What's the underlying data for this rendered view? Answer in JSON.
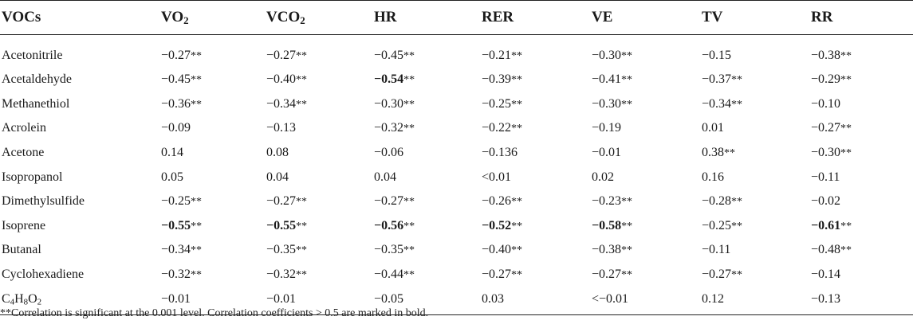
{
  "table": {
    "headers": [
      {
        "base": "VOCs",
        "sub": "",
        "rest": ""
      },
      {
        "base": "VO",
        "sub": "2",
        "rest": ""
      },
      {
        "base": "VCO",
        "sub": "2",
        "rest": ""
      },
      {
        "base": "HR",
        "sub": "",
        "rest": ""
      },
      {
        "base": "RER",
        "sub": "",
        "rest": ""
      },
      {
        "base": "VE",
        "sub": "",
        "rest": ""
      },
      {
        "base": "TV",
        "sub": "",
        "rest": ""
      },
      {
        "base": "RR",
        "sub": "",
        "rest": ""
      }
    ],
    "rows": [
      {
        "voc": {
          "base": "Acetonitrile",
          "parts": []
        },
        "cells": [
          {
            "v": "−0.27",
            "s": "**",
            "b": false
          },
          {
            "v": "−0.27",
            "s": "**",
            "b": false
          },
          {
            "v": "−0.45",
            "s": "**",
            "b": false
          },
          {
            "v": "−0.21",
            "s": "**",
            "b": false
          },
          {
            "v": "−0.30",
            "s": "**",
            "b": false
          },
          {
            "v": "−0.15",
            "s": "",
            "b": false
          },
          {
            "v": "−0.38",
            "s": "**",
            "b": false
          }
        ]
      },
      {
        "voc": {
          "base": "Acetaldehyde",
          "parts": []
        },
        "cells": [
          {
            "v": "−0.45",
            "s": "**",
            "b": false
          },
          {
            "v": "−0.40",
            "s": "**",
            "b": false
          },
          {
            "v": "−0.54",
            "s": "**",
            "b": true
          },
          {
            "v": "−0.39",
            "s": "**",
            "b": false
          },
          {
            "v": "−0.41",
            "s": "**",
            "b": false
          },
          {
            "v": "−0.37",
            "s": "**",
            "b": false
          },
          {
            "v": "−0.29",
            "s": "**",
            "b": false
          }
        ]
      },
      {
        "voc": {
          "base": "Methanethiol",
          "parts": []
        },
        "cells": [
          {
            "v": "−0.36",
            "s": "**",
            "b": false
          },
          {
            "v": "−0.34",
            "s": "**",
            "b": false
          },
          {
            "v": "−0.30",
            "s": "**",
            "b": false
          },
          {
            "v": "−0.25",
            "s": "**",
            "b": false
          },
          {
            "v": "−0.30",
            "s": "**",
            "b": false
          },
          {
            "v": "−0.34",
            "s": "**",
            "b": false
          },
          {
            "v": "−0.10",
            "s": "",
            "b": false
          }
        ]
      },
      {
        "voc": {
          "base": "Acrolein",
          "parts": []
        },
        "cells": [
          {
            "v": "−0.09",
            "s": "",
            "b": false
          },
          {
            "v": "−0.13",
            "s": "",
            "b": false
          },
          {
            "v": "−0.32",
            "s": "**",
            "b": false
          },
          {
            "v": "−0.22",
            "s": "**",
            "b": false
          },
          {
            "v": "−0.19",
            "s": "",
            "b": false
          },
          {
            "v": "0.01",
            "s": "",
            "b": false
          },
          {
            "v": "−0.27",
            "s": "**",
            "b": false
          }
        ]
      },
      {
        "voc": {
          "base": "Acetone",
          "parts": []
        },
        "cells": [
          {
            "v": "0.14",
            "s": "",
            "b": false
          },
          {
            "v": "0.08",
            "s": "",
            "b": false
          },
          {
            "v": "−0.06",
            "s": "",
            "b": false
          },
          {
            "v": "−0.136",
            "s": "",
            "b": false
          },
          {
            "v": "−0.01",
            "s": "",
            "b": false
          },
          {
            "v": "0.38",
            "s": "**",
            "b": false
          },
          {
            "v": "−0.30",
            "s": "**",
            "b": false
          }
        ]
      },
      {
        "voc": {
          "base": "Isopropanol",
          "parts": []
        },
        "cells": [
          {
            "v": "0.05",
            "s": "",
            "b": false
          },
          {
            "v": "0.04",
            "s": "",
            "b": false
          },
          {
            "v": "0.04",
            "s": "",
            "b": false
          },
          {
            "v": "<0.01",
            "s": "",
            "b": false
          },
          {
            "v": "0.02",
            "s": "",
            "b": false
          },
          {
            "v": "0.16",
            "s": "",
            "b": false
          },
          {
            "v": "−0.11",
            "s": "",
            "b": false
          }
        ]
      },
      {
        "voc": {
          "base": "Dimethylsulfide",
          "parts": []
        },
        "cells": [
          {
            "v": "−0.25",
            "s": "**",
            "b": false
          },
          {
            "v": "−0.27",
            "s": "**",
            "b": false
          },
          {
            "v": "−0.27",
            "s": "**",
            "b": false
          },
          {
            "v": "−0.26",
            "s": "**",
            "b": false
          },
          {
            "v": "−0.23",
            "s": "**",
            "b": false
          },
          {
            "v": "−0.28",
            "s": "**",
            "b": false
          },
          {
            "v": "−0.02",
            "s": "",
            "b": false
          }
        ]
      },
      {
        "voc": {
          "base": "Isoprene",
          "parts": []
        },
        "cells": [
          {
            "v": "−0.55",
            "s": "**",
            "b": true
          },
          {
            "v": "−0.55",
            "s": "**",
            "b": true
          },
          {
            "v": "−0.56",
            "s": "**",
            "b": true
          },
          {
            "v": "−0.52",
            "s": "**",
            "b": true
          },
          {
            "v": "−0.58",
            "s": "**",
            "b": true
          },
          {
            "v": "−0.25",
            "s": "**",
            "b": false
          },
          {
            "v": "−0.61",
            "s": "**",
            "b": true
          }
        ]
      },
      {
        "voc": {
          "base": "Butanal",
          "parts": []
        },
        "cells": [
          {
            "v": "−0.34",
            "s": "**",
            "b": false
          },
          {
            "v": "−0.35",
            "s": "**",
            "b": false
          },
          {
            "v": "−0.35",
            "s": "**",
            "b": false
          },
          {
            "v": "−0.40",
            "s": "**",
            "b": false
          },
          {
            "v": "−0.38",
            "s": "**",
            "b": false
          },
          {
            "v": "−0.11",
            "s": "",
            "b": false
          },
          {
            "v": "−0.48",
            "s": "**",
            "b": false
          }
        ]
      },
      {
        "voc": {
          "base": "Cyclohexadiene",
          "parts": []
        },
        "cells": [
          {
            "v": "−0.32",
            "s": "**",
            "b": false
          },
          {
            "v": "−0.32",
            "s": "**",
            "b": false
          },
          {
            "v": "−0.44",
            "s": "**",
            "b": false
          },
          {
            "v": "−0.27",
            "s": "**",
            "b": false
          },
          {
            "v": "−0.27",
            "s": "**",
            "b": false
          },
          {
            "v": "−0.27",
            "s": "**",
            "b": false
          },
          {
            "v": "−0.14",
            "s": "",
            "b": false
          }
        ]
      },
      {
        "voc": {
          "base": "",
          "parts": [
            {
              "t": "C",
              "sub": "4"
            },
            {
              "t": "H",
              "sub": "8"
            },
            {
              "t": "O",
              "sub": "2"
            }
          ]
        },
        "cells": [
          {
            "v": "−0.01",
            "s": "",
            "b": false
          },
          {
            "v": "−0.01",
            "s": "",
            "b": false
          },
          {
            "v": "−0.05",
            "s": "",
            "b": false
          },
          {
            "v": "0.03",
            "s": "",
            "b": false
          },
          {
            "v": "<−0.01",
            "s": "",
            "b": false
          },
          {
            "v": "0.12",
            "s": "",
            "b": false
          },
          {
            "v": "−0.13",
            "s": "",
            "b": false
          }
        ]
      }
    ]
  },
  "footnote": "**Correlation is significant at the 0.001 level. Correlation coefficients > 0.5 are marked in bold."
}
